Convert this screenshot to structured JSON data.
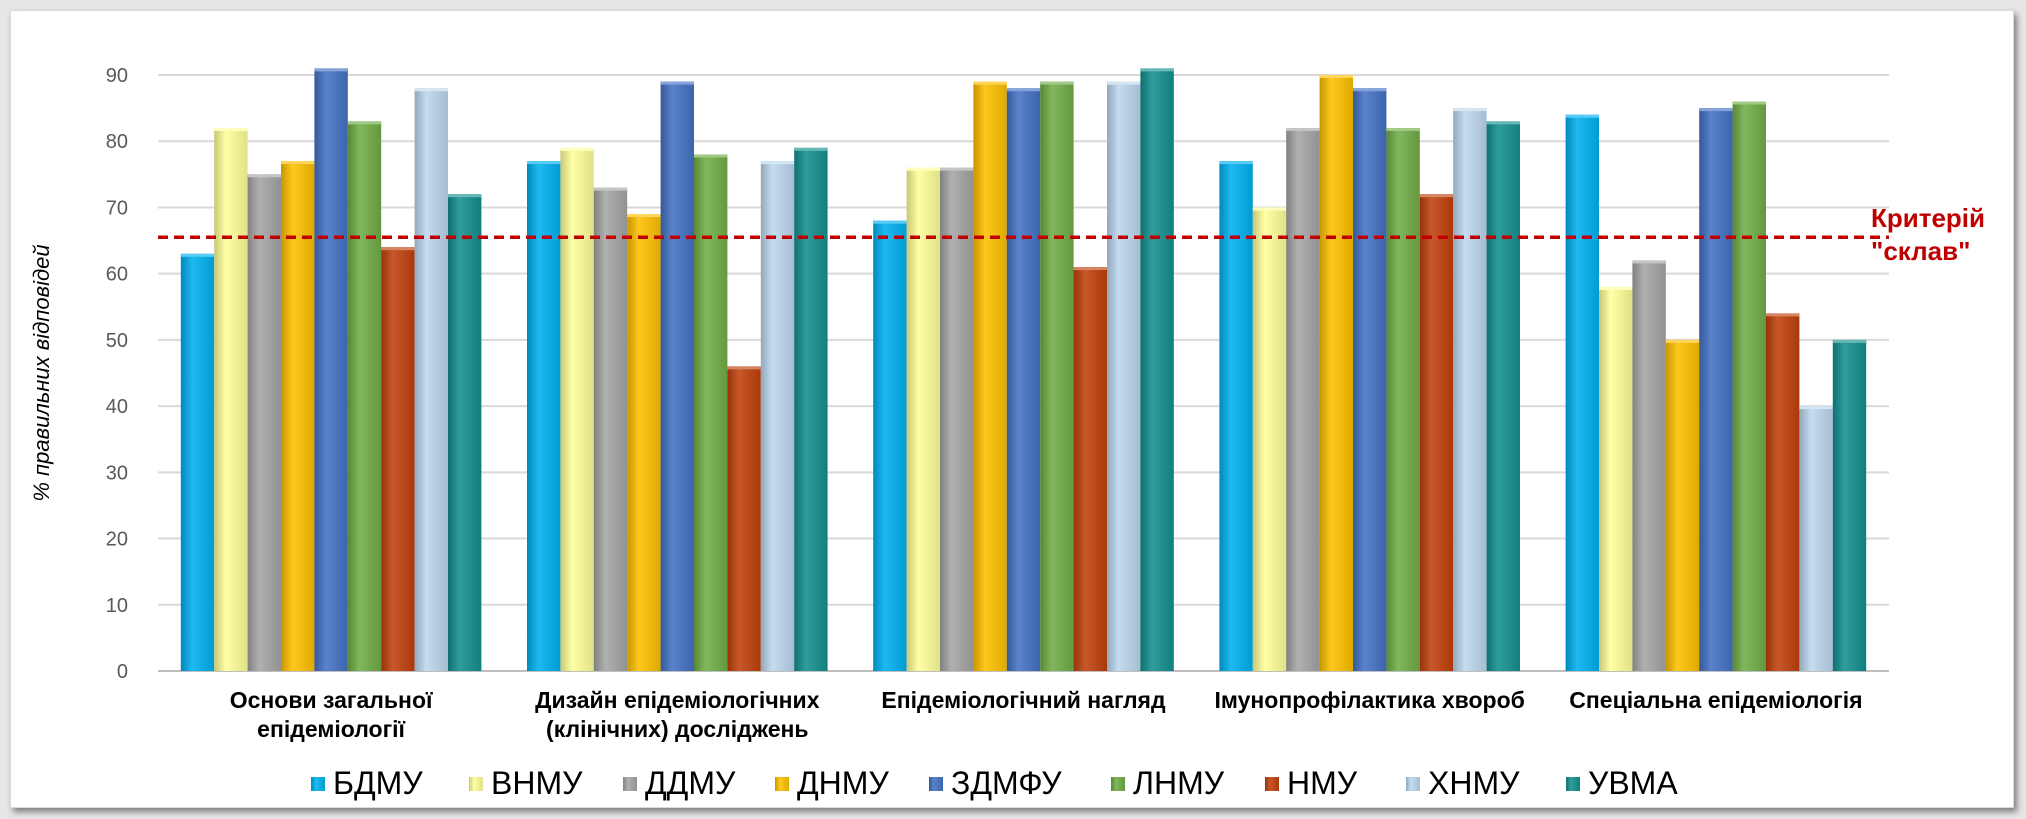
{
  "chart_data": {
    "type": "bar",
    "ylabel": "% правильних відповідей",
    "ylim": [
      0,
      90
    ],
    "yticks": [
      0,
      10,
      20,
      30,
      40,
      50,
      60,
      70,
      80,
      90
    ],
    "grid": true,
    "legend_position": "bottom",
    "categories": [
      [
        "Основи загальної",
        "епідеміології"
      ],
      [
        "Дизайн епідеміологічних",
        "(клінічних) досліджень"
      ],
      [
        "Епідеміологічний нагляд"
      ],
      [
        "Імунопрофілактика хвороб"
      ],
      [
        "Спеціальна епідеміологія"
      ]
    ],
    "series": [
      {
        "name": "БДМУ",
        "color": "#00b0f0",
        "values": [
          63,
          77,
          68,
          77,
          84
        ]
      },
      {
        "name": "ВНМУ",
        "color": "#ffff99",
        "values": [
          82,
          79,
          76,
          70,
          58
        ]
      },
      {
        "name": "ДДМУ",
        "color": "#a5a5a5",
        "values": [
          75,
          73,
          76,
          82,
          62
        ]
      },
      {
        "name": "ДНМУ",
        "color": "#ffc000",
        "values": [
          77,
          69,
          89,
          90,
          50
        ]
      },
      {
        "name": "ЗДМФУ",
        "color": "#4472c4",
        "values": [
          91,
          89,
          88,
          88,
          85
        ]
      },
      {
        "name": "ЛНМУ",
        "color": "#70ad47",
        "values": [
          83,
          78,
          89,
          82,
          86
        ]
      },
      {
        "name": "НМУ",
        "color": "#c0410d",
        "values": [
          64,
          46,
          61,
          72,
          54
        ]
      },
      {
        "name": "ХНМУ",
        "color": "#bdd7ee",
        "values": [
          88,
          77,
          89,
          85,
          40
        ]
      },
      {
        "name": "УВМА",
        "color": "#13908f",
        "values": [
          72,
          79,
          91,
          83,
          50
        ]
      }
    ],
    "reference_line": {
      "value": 65.5,
      "label_lines": [
        "Критерій",
        "\"склав\""
      ],
      "color": "#c00000",
      "style": "dashed"
    }
  }
}
